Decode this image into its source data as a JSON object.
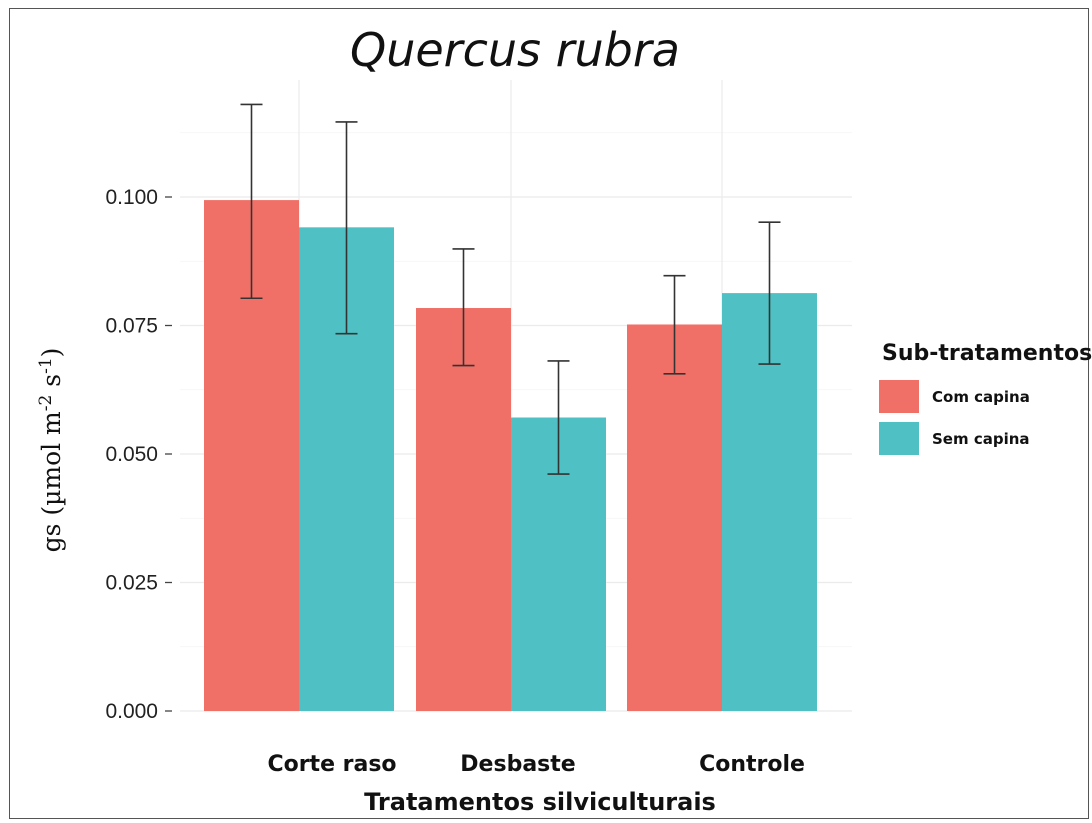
{
  "chart_data": {
    "type": "bar",
    "title": "Quercus rubra",
    "xlabel": "Tratamentos silviculturais",
    "ylabel": {
      "prefix": "gs (µmol m",
      "exp1": "-2",
      "mid": " s",
      "exp2": "-1",
      "suffix": ")"
    },
    "categories": [
      "Corte raso",
      "Desbaste",
      "Controle"
    ],
    "ylim": [
      0,
      0.12
    ],
    "yticks": [
      "0.000",
      "0.025",
      "0.050",
      "0.075",
      "0.100"
    ],
    "yticks_values": [
      0,
      0.025,
      0.05,
      0.075,
      0.1
    ],
    "grid": true,
    "legend": {
      "title": "Sub-tratamentos",
      "placement": "right"
    },
    "series": [
      {
        "name": "Com capina",
        "color": "#F07068",
        "values": [
          0.0994,
          0.0784,
          0.0752
        ],
        "err_low": [
          0.0803,
          0.0672,
          0.0656
        ],
        "err_high": [
          0.118,
          0.0899,
          0.0847
        ]
      },
      {
        "name": "Sem capina",
        "color": "#4FC0C3",
        "values": [
          0.0941,
          0.0571,
          0.0813
        ],
        "err_low": [
          0.0734,
          0.0461,
          0.0675
        ],
        "err_high": [
          0.1146,
          0.0681,
          0.0951
        ]
      }
    ]
  }
}
